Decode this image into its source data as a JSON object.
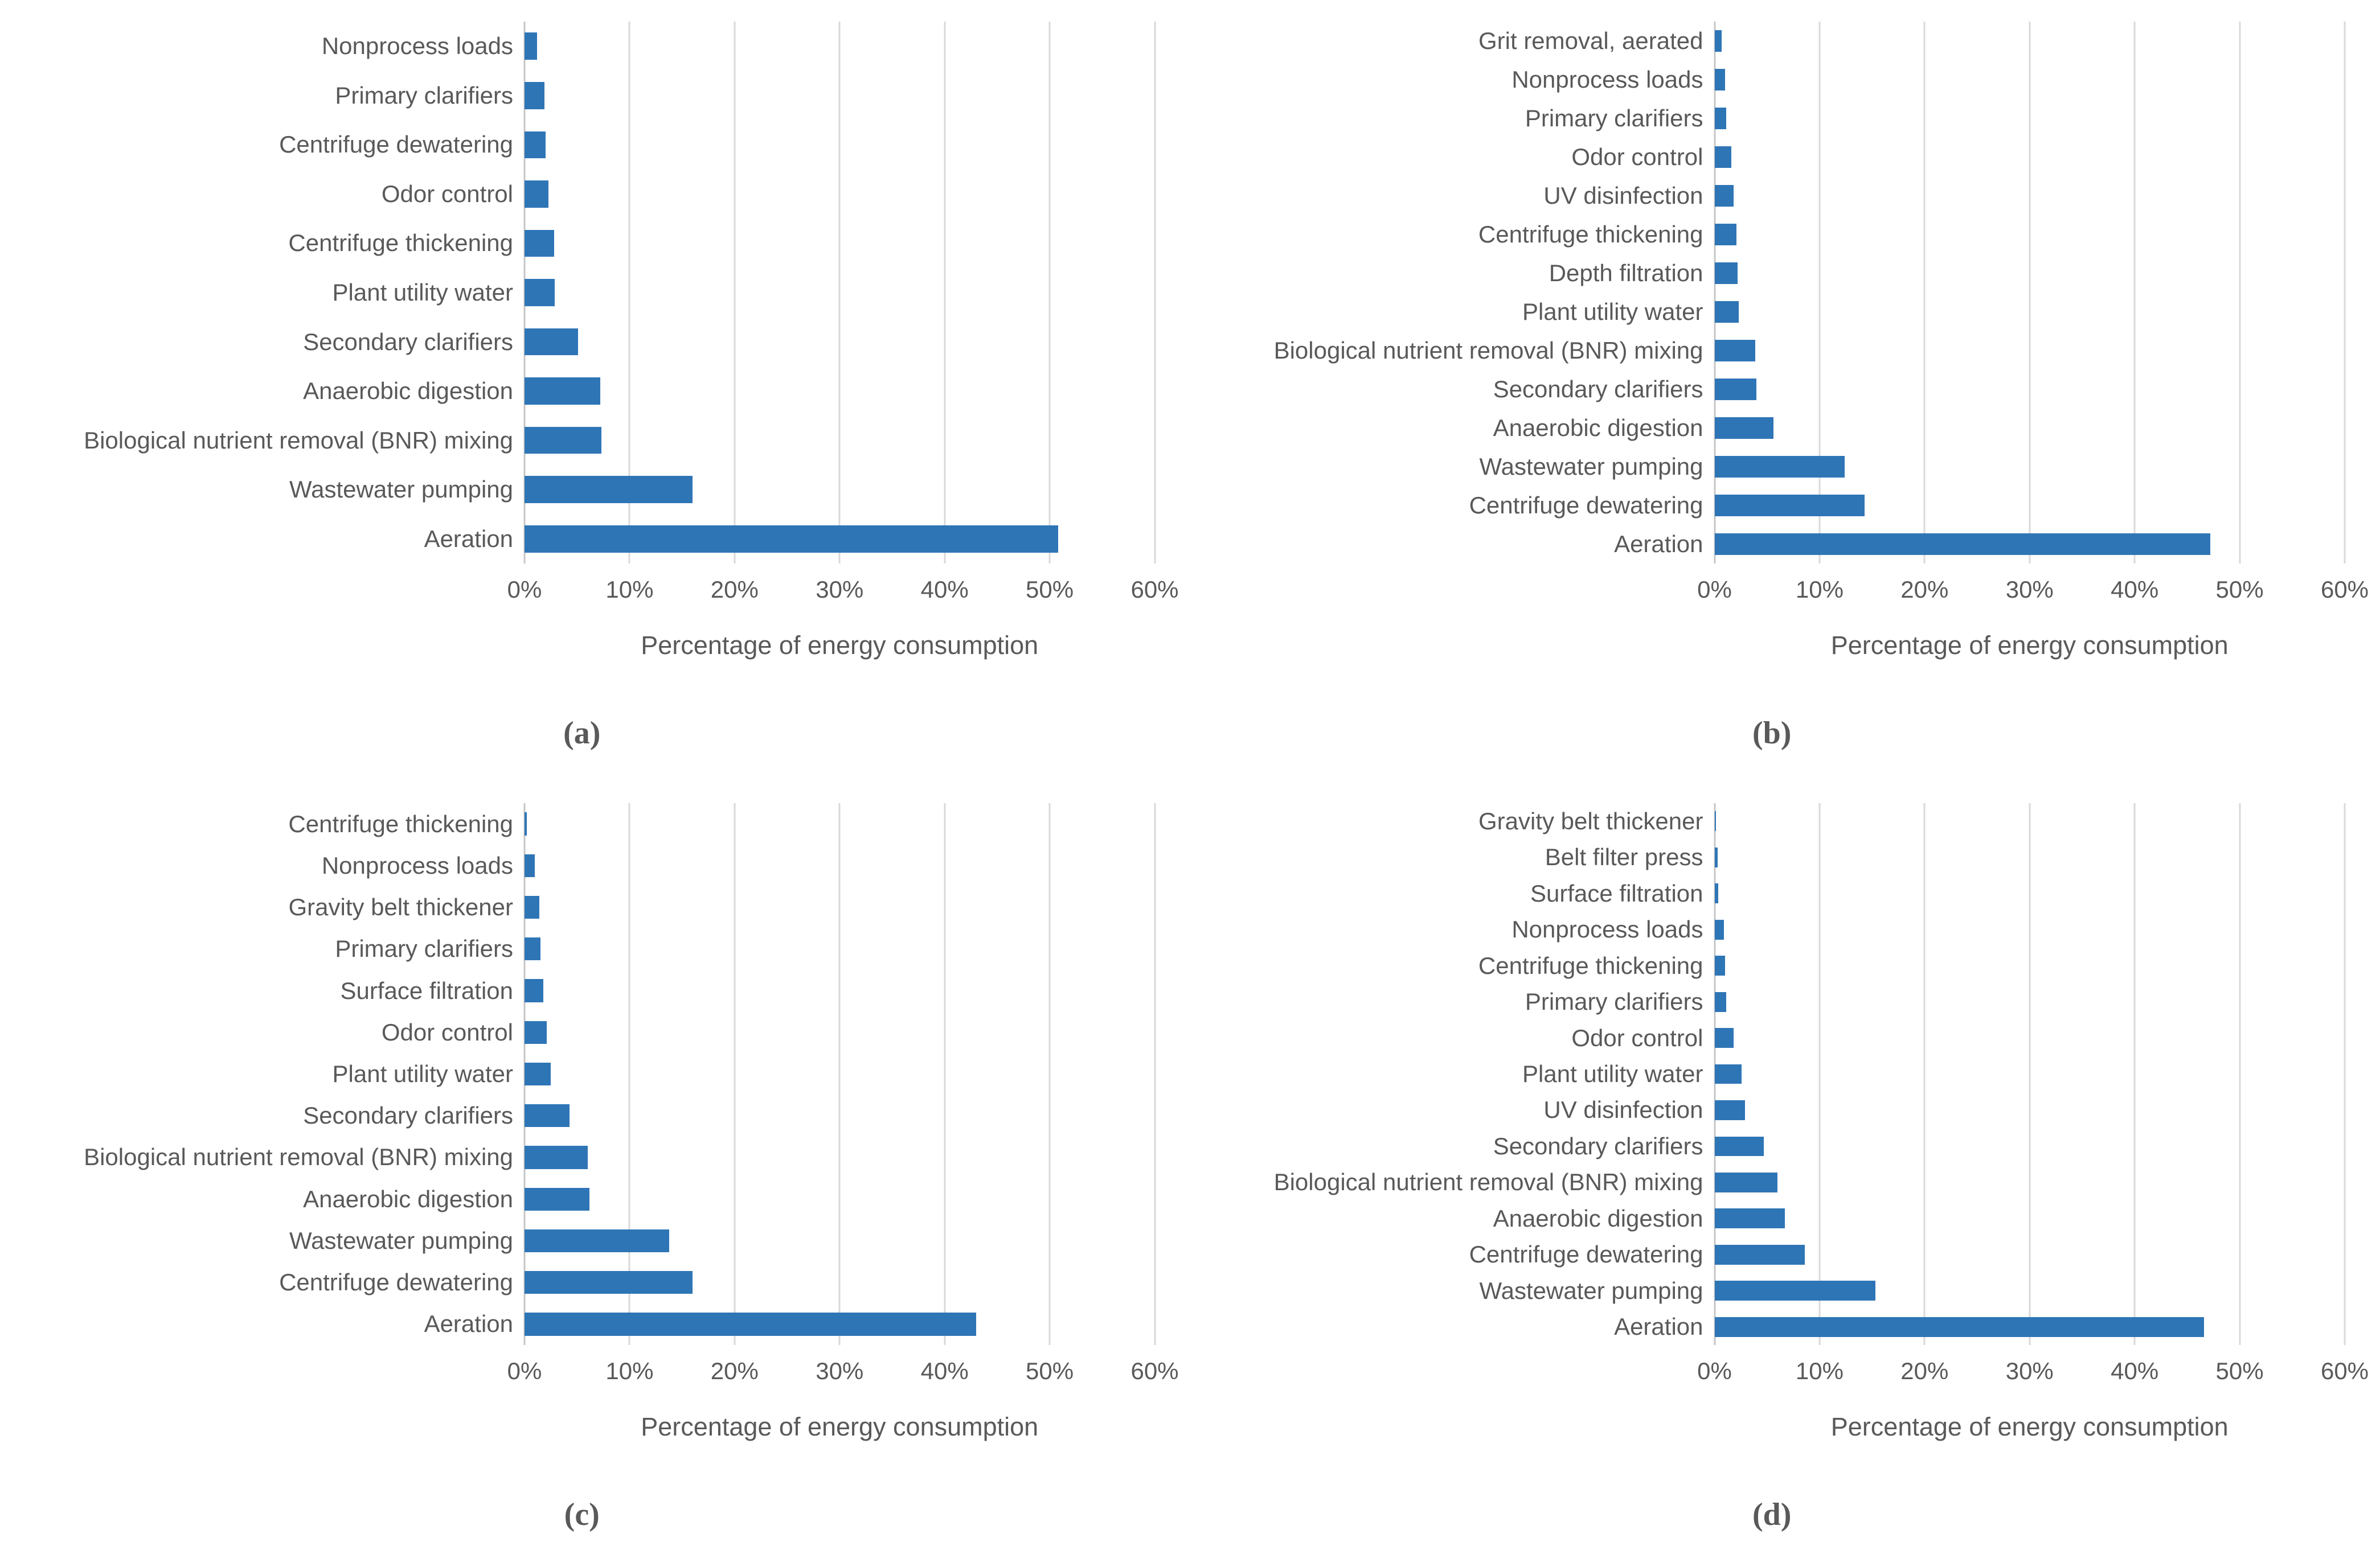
{
  "colors": {
    "bar": "#2E75B6",
    "text": "#595959",
    "grid": "#D9D9D9",
    "axis": "#C6C6C6",
    "background": "#FFFFFF"
  },
  "chart_data": [
    {
      "type": "bar",
      "orientation": "horizontal",
      "caption": "(a)",
      "xlabel": "Percentage of energy consumption",
      "xlim": [
        0,
        60
      ],
      "grid": true,
      "tick_labels": [
        "0%",
        "10%",
        "20%",
        "30%",
        "40%",
        "50%",
        "60%"
      ],
      "categories": [
        "Nonprocess loads",
        "Primary clarifiers",
        "Centrifuge dewatering",
        "Odor control",
        "Centrifuge thickening",
        "Plant utility water",
        "Secondary clarifiers",
        "Anaerobic digestion",
        "Biological nutrient removal (BNR) mixing",
        "Wastewater pumping",
        "Aeration"
      ],
      "values": [
        1.2,
        1.9,
        2.0,
        2.3,
        2.8,
        2.9,
        5.1,
        7.2,
        7.3,
        16.0,
        50.8
      ]
    },
    {
      "type": "bar",
      "orientation": "horizontal",
      "caption": "(b)",
      "xlabel": "Percentage of energy consumption",
      "xlim": [
        0,
        60
      ],
      "grid": true,
      "tick_labels": [
        "0%",
        "10%",
        "20%",
        "30%",
        "40%",
        "50%",
        "60%"
      ],
      "categories": [
        "Grit removal, aerated",
        "Nonprocess loads",
        "Primary clarifiers",
        "Odor control",
        "UV disinfection",
        "Centrifuge thickening",
        "Depth filtration",
        "Plant utility water",
        "Biological nutrient removal (BNR) mixing",
        "Secondary clarifiers",
        "Anaerobic digestion",
        "Wastewater pumping",
        "Centrifuge dewatering",
        "Aeration"
      ],
      "values": [
        0.7,
        1.0,
        1.1,
        1.6,
        1.8,
        2.1,
        2.2,
        2.3,
        3.9,
        4.0,
        5.6,
        12.4,
        14.3,
        47.2
      ]
    },
    {
      "type": "bar",
      "orientation": "horizontal",
      "caption": "(c)",
      "xlabel": "Percentage of energy consumption",
      "xlim": [
        0,
        60
      ],
      "grid": true,
      "tick_labels": [
        "0%",
        "10%",
        "20%",
        "30%",
        "40%",
        "50%",
        "60%"
      ],
      "categories": [
        "Centrifuge thickening",
        "Nonprocess loads",
        "Gravity belt thickener",
        "Primary clarifiers",
        "Surface filtration",
        "Odor control",
        "Plant utility water",
        "Secondary clarifiers",
        "Biological nutrient removal (BNR) mixing",
        "Anaerobic digestion",
        "Wastewater pumping",
        "Centrifuge dewatering",
        "Aeration"
      ],
      "values": [
        0.2,
        1.0,
        1.4,
        1.5,
        1.8,
        2.1,
        2.5,
        4.3,
        6.0,
        6.2,
        13.8,
        16.0,
        43.0
      ]
    },
    {
      "type": "bar",
      "orientation": "horizontal",
      "caption": "(d)",
      "xlabel": "Percentage of energy consumption",
      "xlim": [
        0,
        60
      ],
      "grid": true,
      "tick_labels": [
        "0%",
        "10%",
        "20%",
        "30%",
        "40%",
        "50%",
        "60%"
      ],
      "categories": [
        "Gravity belt thickener",
        "Belt filter press",
        "Surface filtration",
        "Nonprocess loads",
        "Centrifuge thickening",
        "Primary clarifiers",
        "Odor control",
        "Plant utility water",
        "UV disinfection",
        "Secondary clarifiers",
        "Biological nutrient removal (BNR) mixing",
        "Anaerobic digestion",
        "Centrifuge dewatering",
        "Wastewater pumping",
        "Aeration"
      ],
      "values": [
        0.15,
        0.3,
        0.35,
        0.9,
        1.0,
        1.1,
        1.8,
        2.6,
        2.9,
        4.7,
        6.0,
        6.7,
        8.6,
        15.3,
        46.6
      ]
    }
  ]
}
